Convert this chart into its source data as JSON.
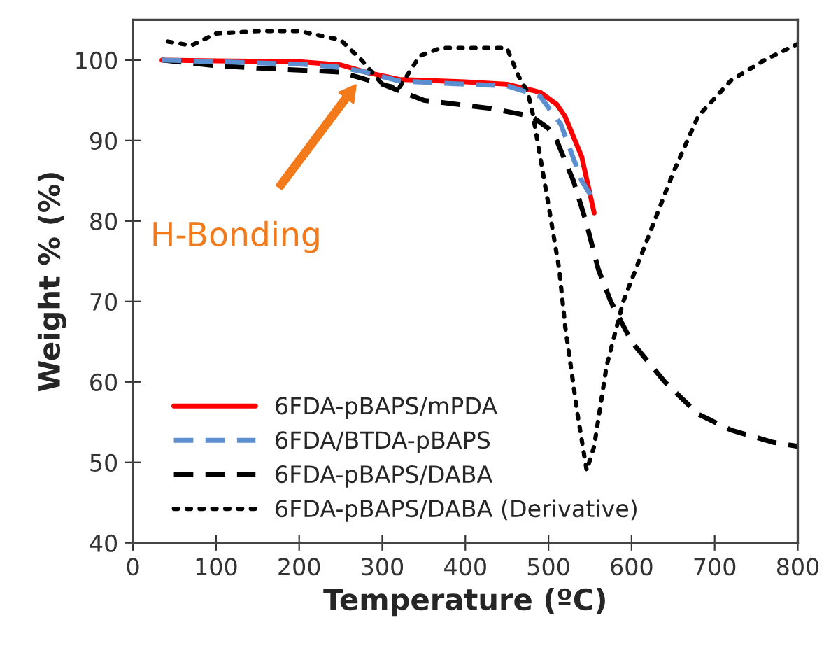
{
  "chart_data": {
    "type": "line",
    "xlabel": "Temperature (ºC)",
    "ylabel": "Weight % (%)",
    "xlim": [
      0,
      800
    ],
    "xticks": [
      0,
      100,
      200,
      300,
      400,
      500,
      600,
      700,
      800
    ],
    "ylim": [
      40,
      105
    ],
    "yticks": [
      40,
      50,
      60,
      70,
      80,
      90,
      100
    ],
    "grid": false,
    "legend": "bottom left",
    "marker": "none",
    "annotations": [
      "H-Bonding"
    ],
    "series": [
      {
        "name": "6FDA-pBAPS/mPDA",
        "color": "#ff0000",
        "line_style": "solid",
        "x": [
          35,
          100,
          200,
          250,
          280,
          320,
          400,
          450,
          490,
          510,
          520,
          540,
          555
        ],
        "values": [
          100,
          99.9,
          99.8,
          99.4,
          98.5,
          97.6,
          97.3,
          97,
          96,
          94.5,
          93,
          88,
          81
        ]
      },
      {
        "name": "6FDA/BTDA-pBAPS",
        "color": "#5b8fd0",
        "line_style": "dashed",
        "x": [
          35,
          100,
          200,
          250,
          280,
          320,
          400,
          450,
          490,
          515,
          540,
          552
        ],
        "values": [
          100,
          99.8,
          99.5,
          99.1,
          98.5,
          97.4,
          97,
          96.8,
          95.5,
          92,
          85,
          83
        ]
      },
      {
        "name": "6FDA-pBAPS/DABA",
        "color": "#000000",
        "line_style": "dashed",
        "x": [
          35,
          100,
          150,
          250,
          300,
          350,
          430,
          480,
          500,
          510,
          530,
          545,
          560,
          575,
          600,
          640,
          680,
          720,
          770,
          800
        ],
        "values": [
          100,
          99.3,
          99,
          98.5,
          97,
          95,
          94,
          93,
          91.5,
          90,
          85,
          80,
          74,
          70,
          65,
          60,
          56,
          54,
          52.5,
          52
        ]
      },
      {
        "name": "6FDA-pBAPS/DABA (Derivative)",
        "color": "#000000",
        "line_style": "dotted",
        "x": [
          42,
          70,
          100,
          150,
          200,
          250,
          275,
          300,
          320,
          345,
          370,
          450,
          464,
          475,
          481,
          490,
          500,
          513,
          520,
          535,
          546,
          555,
          570,
          590,
          620,
          650,
          680,
          720,
          760,
          800
        ],
        "values": [
          102.3,
          101.8,
          103.3,
          103.6,
          103.6,
          102.5,
          100,
          97,
          96.5,
          100.5,
          101.5,
          101.5,
          98,
          96,
          93.4,
          88,
          82,
          74,
          67,
          56,
          49,
          52,
          62,
          70,
          78,
          86,
          93,
          97.5,
          100,
          102
        ]
      }
    ]
  }
}
